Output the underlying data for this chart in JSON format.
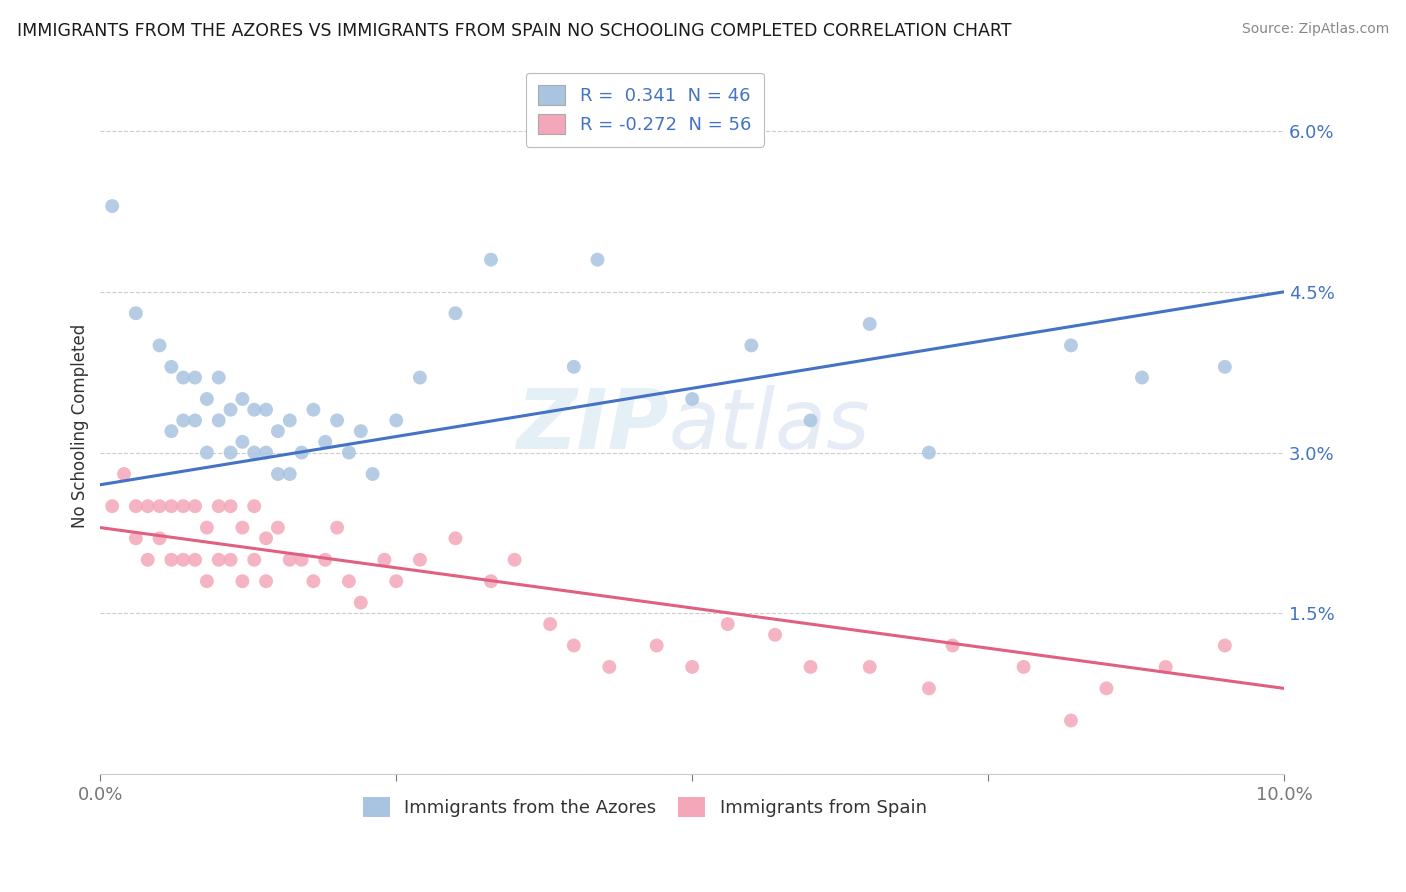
{
  "title": "IMMIGRANTS FROM THE AZORES VS IMMIGRANTS FROM SPAIN NO SCHOOLING COMPLETED CORRELATION CHART",
  "source": "Source: ZipAtlas.com",
  "ylabel": "No Schooling Completed",
  "xlim": [
    0.0,
    0.1
  ],
  "ylim": [
    0.0,
    0.065
  ],
  "yticks": [
    0.0,
    0.015,
    0.03,
    0.045,
    0.06
  ],
  "ytick_labels": [
    "",
    "1.5%",
    "3.0%",
    "4.5%",
    "6.0%"
  ],
  "xticks": [
    0.0,
    0.025,
    0.05,
    0.075,
    0.1
  ],
  "xtick_labels": [
    "0.0%",
    "",
    "",
    "",
    "10.0%"
  ],
  "azores_color": "#a8c4e0",
  "spain_color": "#f4a7b9",
  "azores_line_color": "#4472c4",
  "spain_line_color": "#e06080",
  "legend_r_azores": "0.341",
  "legend_n_azores": "46",
  "legend_r_spain": "-0.272",
  "legend_n_spain": "56",
  "watermark_zip": "ZIP",
  "watermark_atlas": "atlas",
  "blue_line_x0": 0.0,
  "blue_line_y0": 0.027,
  "blue_line_x1": 0.1,
  "blue_line_y1": 0.045,
  "pink_line_x0": 0.0,
  "pink_line_y0": 0.023,
  "pink_line_x1": 0.1,
  "pink_line_y1": 0.008,
  "azores_x": [
    0.001,
    0.003,
    0.005,
    0.006,
    0.006,
    0.007,
    0.007,
    0.008,
    0.008,
    0.009,
    0.009,
    0.01,
    0.01,
    0.011,
    0.011,
    0.012,
    0.012,
    0.013,
    0.013,
    0.014,
    0.014,
    0.015,
    0.015,
    0.016,
    0.016,
    0.017,
    0.018,
    0.019,
    0.02,
    0.021,
    0.022,
    0.023,
    0.025,
    0.027,
    0.03,
    0.033,
    0.04,
    0.042,
    0.05,
    0.055,
    0.06,
    0.065,
    0.07,
    0.082,
    0.088,
    0.095
  ],
  "azores_y": [
    0.053,
    0.043,
    0.04,
    0.038,
    0.032,
    0.037,
    0.033,
    0.037,
    0.033,
    0.035,
    0.03,
    0.037,
    0.033,
    0.034,
    0.03,
    0.035,
    0.031,
    0.034,
    0.03,
    0.034,
    0.03,
    0.032,
    0.028,
    0.033,
    0.028,
    0.03,
    0.034,
    0.031,
    0.033,
    0.03,
    0.032,
    0.028,
    0.033,
    0.037,
    0.043,
    0.048,
    0.038,
    0.048,
    0.035,
    0.04,
    0.033,
    0.042,
    0.03,
    0.04,
    0.037,
    0.038
  ],
  "spain_x": [
    0.001,
    0.002,
    0.003,
    0.003,
    0.004,
    0.004,
    0.005,
    0.005,
    0.006,
    0.006,
    0.007,
    0.007,
    0.008,
    0.008,
    0.009,
    0.009,
    0.01,
    0.01,
    0.011,
    0.011,
    0.012,
    0.012,
    0.013,
    0.013,
    0.014,
    0.014,
    0.015,
    0.016,
    0.017,
    0.018,
    0.019,
    0.02,
    0.021,
    0.022,
    0.024,
    0.025,
    0.027,
    0.03,
    0.033,
    0.035,
    0.038,
    0.04,
    0.043,
    0.047,
    0.05,
    0.053,
    0.057,
    0.06,
    0.065,
    0.07,
    0.072,
    0.078,
    0.082,
    0.085,
    0.09,
    0.095
  ],
  "spain_y": [
    0.025,
    0.028,
    0.025,
    0.022,
    0.025,
    0.02,
    0.025,
    0.022,
    0.025,
    0.02,
    0.025,
    0.02,
    0.025,
    0.02,
    0.023,
    0.018,
    0.025,
    0.02,
    0.025,
    0.02,
    0.023,
    0.018,
    0.025,
    0.02,
    0.022,
    0.018,
    0.023,
    0.02,
    0.02,
    0.018,
    0.02,
    0.023,
    0.018,
    0.016,
    0.02,
    0.018,
    0.02,
    0.022,
    0.018,
    0.02,
    0.014,
    0.012,
    0.01,
    0.012,
    0.01,
    0.014,
    0.013,
    0.01,
    0.01,
    0.008,
    0.012,
    0.01,
    0.005,
    0.008,
    0.01,
    0.012
  ]
}
